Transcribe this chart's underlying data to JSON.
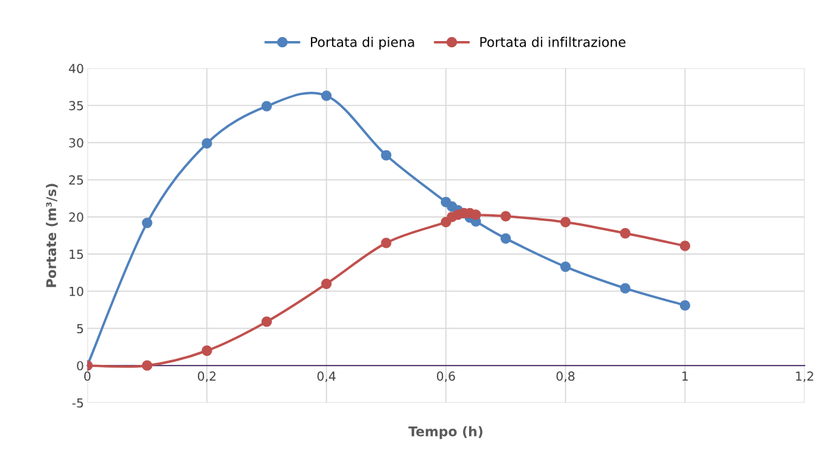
{
  "chart_data": {
    "type": "line",
    "xlabel": "Tempo (h)",
    "ylabel": "Portate (m³/s)",
    "xlim": [
      0,
      1.2
    ],
    "xticks": [
      0,
      {
        "value": 0.2,
        "label": "0,2"
      },
      {
        "value": 0.4,
        "label": "0,4"
      },
      {
        "value": 0.6,
        "label": "0,6"
      },
      {
        "value": 0.8,
        "label": "0,8"
      },
      1,
      {
        "value": 1.2,
        "label": "1,2"
      }
    ],
    "ylim": [
      -5,
      40
    ],
    "yticks": [
      -5,
      0,
      5,
      10,
      15,
      20,
      25,
      30,
      35,
      40
    ],
    "grid": true,
    "legend": "top",
    "marker": "circle",
    "line_style": "solid",
    "x": [
      0,
      0.1,
      0.2,
      0.3,
      0.4,
      0.5,
      0.6,
      0.61,
      0.62,
      0.63,
      0.64,
      0.65,
      0.7,
      0.8,
      0.9,
      1
    ],
    "series": [
      {
        "name": "Portata di piena",
        "color": "#4f81bd",
        "values": [
          0,
          19.2,
          29.9,
          34.9,
          36.3,
          28.3,
          22.0,
          21.4,
          20.9,
          20.5,
          19.9,
          19.4,
          17.1,
          13.3,
          10.4,
          8.1
        ]
      },
      {
        "name": "Portata di infiltrazione",
        "color": "#c0504d",
        "values": [
          0,
          0,
          2.0,
          5.9,
          11.0,
          16.5,
          19.3,
          20.0,
          20.3,
          20.5,
          20.5,
          20.3,
          20.1,
          19.3,
          17.8,
          16.1
        ]
      }
    ]
  }
}
